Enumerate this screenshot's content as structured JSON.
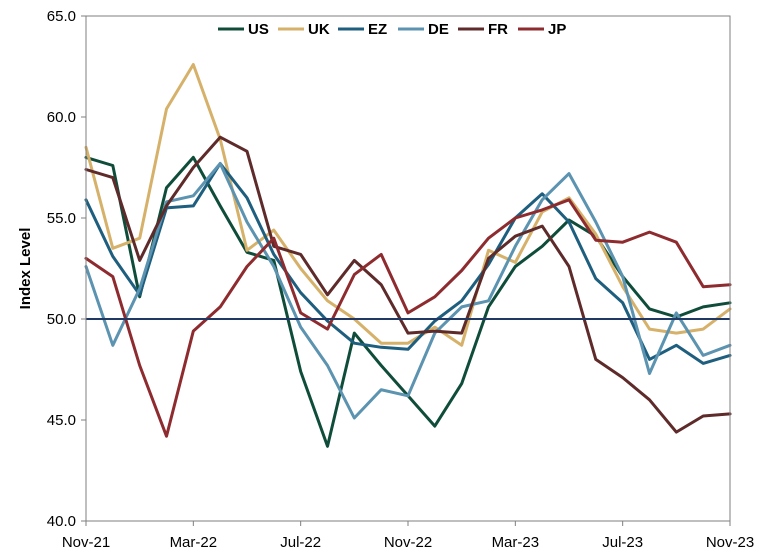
{
  "chart_data": {
    "type": "line",
    "ylabel": "Index Level",
    "xlabel": "",
    "ylim": [
      40,
      65
    ],
    "yticks": [
      "40.0",
      "45.0",
      "50.0",
      "55.0",
      "60.0",
      "65.0"
    ],
    "xtick_labels": [
      "Nov-21",
      "Mar-22",
      "Jul-22",
      "Nov-22",
      "Mar-23",
      "Jul-23",
      "Nov-23"
    ],
    "reference_line": 50,
    "legend_position": "top",
    "reference_color": "#1f3864",
    "x": [
      "Nov-21",
      "Dec-21",
      "Jan-22",
      "Feb-22",
      "Mar-22",
      "Apr-22",
      "May-22",
      "Jun-22",
      "Jul-22",
      "Aug-22",
      "Sep-22",
      "Oct-22",
      "Nov-22",
      "Dec-22",
      "Jan-23",
      "Feb-23",
      "Mar-23",
      "Apr-23",
      "May-23",
      "Jun-23",
      "Jul-23",
      "Aug-23",
      "Sep-23",
      "Oct-23",
      "Nov-23"
    ],
    "series": [
      {
        "name": "US",
        "color": "#0f4d3a",
        "values": [
          58.0,
          57.6,
          51.1,
          56.5,
          58.0,
          55.6,
          53.3,
          52.9,
          47.4,
          43.7,
          49.3,
          47.7,
          46.2,
          44.7,
          46.8,
          50.6,
          52.6,
          53.6,
          54.9,
          54.1,
          52.1,
          50.5,
          50.1,
          50.6,
          50.8
        ]
      },
      {
        "name": "UK",
        "color": "#d6b16a",
        "values": [
          58.5,
          53.5,
          54.0,
          60.4,
          62.6,
          58.9,
          53.4,
          54.4,
          52.5,
          50.9,
          50.0,
          48.8,
          48.8,
          49.6,
          48.7,
          53.4,
          52.8,
          55.3,
          56.0,
          54.2,
          51.6,
          49.5,
          49.3,
          49.5,
          50.5
        ]
      },
      {
        "name": "EZ",
        "color": "#1e5e7e",
        "values": [
          55.9,
          53.1,
          51.2,
          55.5,
          55.6,
          57.7,
          56.0,
          53.2,
          51.3,
          49.9,
          48.8,
          48.6,
          48.5,
          49.9,
          50.9,
          52.7,
          55.0,
          56.2,
          54.8,
          52.0,
          50.8,
          48.0,
          48.7,
          47.8,
          48.2
        ]
      },
      {
        "name": "DE",
        "color": "#5b93b0",
        "values": [
          52.6,
          48.7,
          51.5,
          55.8,
          56.1,
          57.7,
          54.8,
          52.6,
          49.6,
          47.7,
          45.1,
          46.5,
          46.2,
          49.3,
          50.6,
          50.9,
          53.6,
          55.9,
          57.2,
          54.8,
          52.1,
          47.3,
          50.3,
          48.2,
          48.7
        ]
      },
      {
        "name": "FR",
        "color": "#5e2a2a",
        "values": [
          57.4,
          57.0,
          52.9,
          55.6,
          57.5,
          59.0,
          58.3,
          53.6,
          53.2,
          51.2,
          52.9,
          51.7,
          49.3,
          49.4,
          49.3,
          53.0,
          54.1,
          54.6,
          52.6,
          48.0,
          47.1,
          46.0,
          44.4,
          45.2,
          45.3
        ]
      },
      {
        "name": "JP",
        "color": "#8e2b2f",
        "values": [
          53.0,
          52.1,
          47.7,
          44.2,
          49.4,
          50.6,
          52.6,
          54.0,
          50.3,
          49.5,
          52.2,
          53.2,
          50.3,
          51.1,
          52.4,
          54.0,
          55.0,
          55.4,
          55.9,
          53.9,
          53.8,
          54.3,
          53.8,
          51.6,
          51.7
        ]
      }
    ]
  }
}
